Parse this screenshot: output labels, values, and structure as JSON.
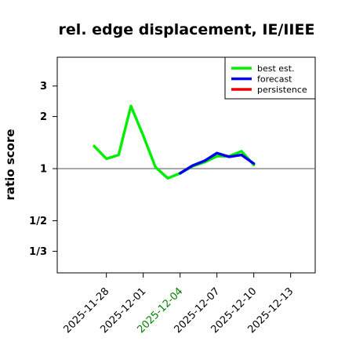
{
  "chart_data": {
    "type": "line",
    "title": "rel. edge displacement, IE/IIEE",
    "xlabel": "",
    "ylabel": "ratio score",
    "y_scale": "log2",
    "ylim": [
      0.25,
      4.4
    ],
    "xlim": [
      "2025-11-24",
      "2025-12-15"
    ],
    "reference_line": 1,
    "y_ticks": [
      {
        "value": 3,
        "label": "3"
      },
      {
        "value": 2,
        "label": "2"
      },
      {
        "value": 1,
        "label": "1"
      },
      {
        "value": 0.5,
        "label": "1/2"
      },
      {
        "value": 0.3333,
        "label": "1/3"
      }
    ],
    "x_ticks": [
      {
        "date": "2025-11-28",
        "label": "2025-11-28",
        "color": "#000000"
      },
      {
        "date": "2025-12-01",
        "label": "2025-12-01",
        "color": "#000000"
      },
      {
        "date": "2025-12-04",
        "label": "2025-12-04",
        "color": "#008000"
      },
      {
        "date": "2025-12-07",
        "label": "2025-12-07",
        "color": "#000000"
      },
      {
        "date": "2025-12-10",
        "label": "2025-12-10",
        "color": "#000000"
      },
      {
        "date": "2025-12-13",
        "label": "2025-12-13",
        "color": "#000000"
      }
    ],
    "legend": {
      "position": "top-right",
      "entries": [
        {
          "name": "best est.",
          "color": "#00ee00"
        },
        {
          "name": "forecast",
          "color": "#0000ee"
        },
        {
          "name": "persistence",
          "color": "#ee0000"
        }
      ]
    },
    "series": [
      {
        "name": "best est.",
        "color": "#00ee00",
        "points": [
          {
            "x": "2025-11-27",
            "y": 1.35
          },
          {
            "x": "2025-11-28",
            "y": 1.14
          },
          {
            "x": "2025-11-29",
            "y": 1.2
          },
          {
            "x": "2025-11-30",
            "y": 2.3
          },
          {
            "x": "2025-12-01",
            "y": 1.55
          },
          {
            "x": "2025-12-02",
            "y": 1.02
          },
          {
            "x": "2025-12-03",
            "y": 0.88
          },
          {
            "x": "2025-12-04",
            "y": 0.94
          },
          {
            "x": "2025-12-05",
            "y": 1.03
          },
          {
            "x": "2025-12-06",
            "y": 1.09
          },
          {
            "x": "2025-12-07",
            "y": 1.18
          },
          {
            "x": "2025-12-08",
            "y": 1.18
          },
          {
            "x": "2025-12-09",
            "y": 1.26
          },
          {
            "x": "2025-12-10",
            "y": 1.05
          }
        ]
      },
      {
        "name": "forecast",
        "color": "#0000ee",
        "points": [
          {
            "x": "2025-12-04",
            "y": 0.94
          },
          {
            "x": "2025-12-05",
            "y": 1.04
          },
          {
            "x": "2025-12-06",
            "y": 1.11
          },
          {
            "x": "2025-12-07",
            "y": 1.23
          },
          {
            "x": "2025-12-08",
            "y": 1.17
          },
          {
            "x": "2025-12-09",
            "y": 1.2
          },
          {
            "x": "2025-12-10",
            "y": 1.07
          }
        ]
      },
      {
        "name": "persistence",
        "color": "#ee0000",
        "points": []
      }
    ]
  }
}
